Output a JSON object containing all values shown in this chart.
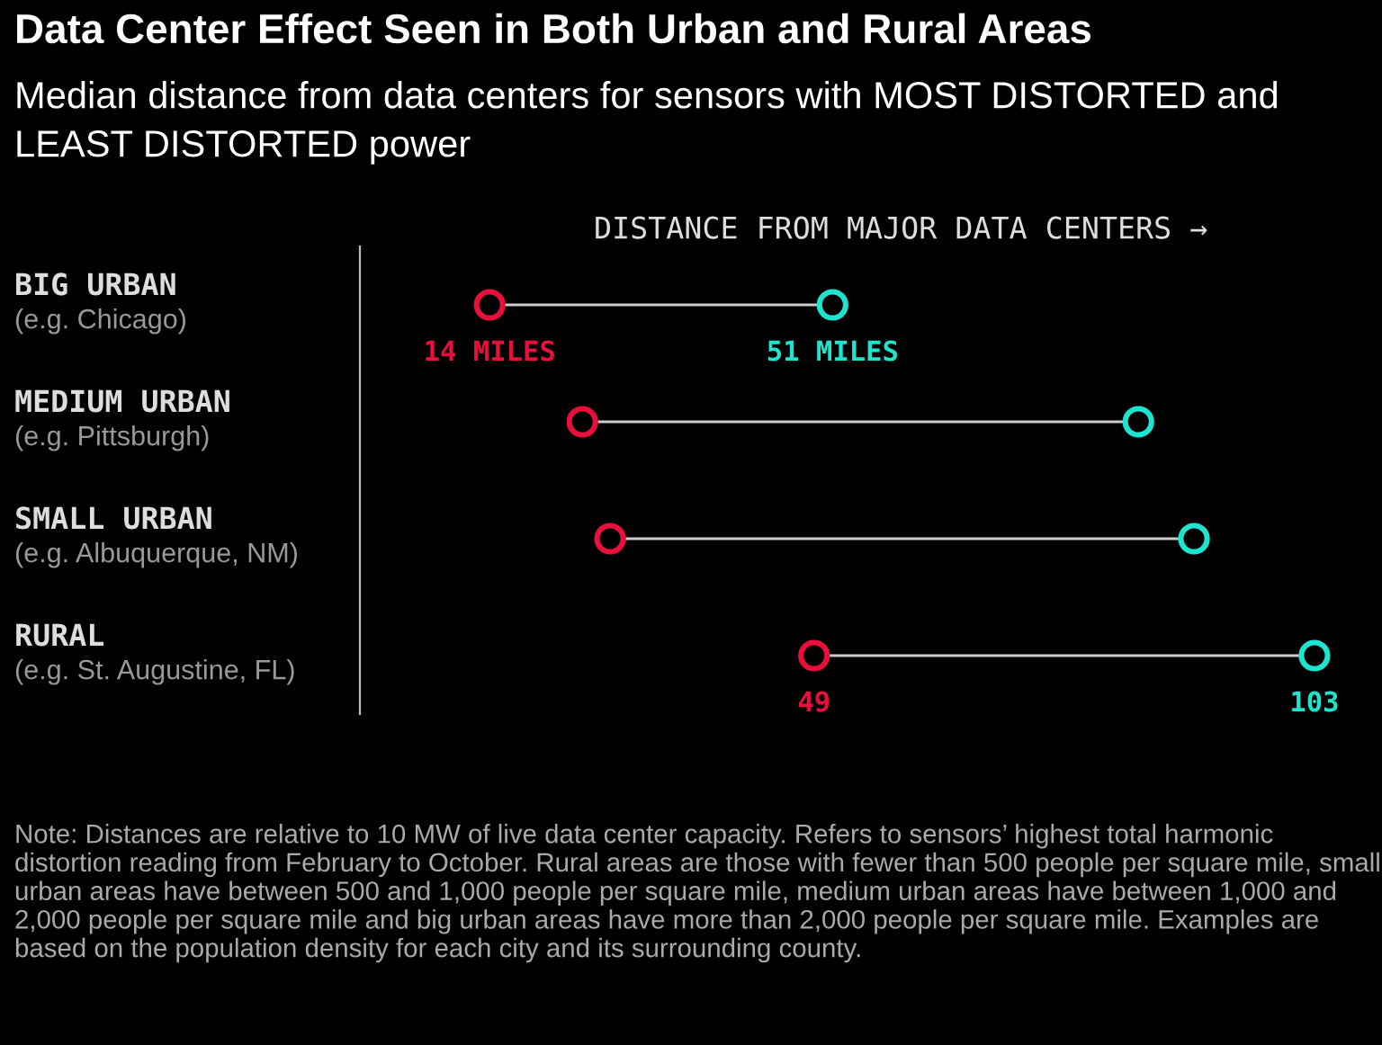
{
  "chart_data": {
    "type": "scatter",
    "orientation": "horizontal",
    "title": "Data Center Effect Seen in Both Urban and Rural Areas",
    "subtitle": "Median distance from data centers for sensors with MOST DISTORTED and LEAST DISTORTED power",
    "xlabel": "DISTANCE FROM MAJOR DATA CENTERS →",
    "categories": [
      "BIG URBAN\n(e.g. Chicago)",
      "MEDIUM URBAN\n(e.g. Pittsburgh)",
      "SMALL URBAN\n(e.g. Albuquerque, NM)",
      "RURAL\n(e.g. St. Augustine, FL)"
    ],
    "series": [
      {
        "color": "#e8103a",
        "values": [
          14,
          24,
          27,
          49
        ],
        "value_labels": [
          "14 MILES",
          null,
          null,
          "49"
        ]
      },
      {
        "color": "#1ee3cf",
        "values": [
          51,
          84,
          90,
          103
        ],
        "value_labels": [
          "51 MILES",
          null,
          null,
          "103"
        ]
      }
    ],
    "marker": "circle",
    "legend": false,
    "annotations": [
      "Note: Distances are relative to 10 MW of live data center capacity. Refers to sensors’ highest total harmonic distortion reading from February to October. Rural areas are those with fewer than 500 people per square mile, small urban areas have between 500 and 1,000 people per square mile, medium urban areas have between 1,000 and 2,000 people per square mile and big urban areas have more than 2,000 people per square mile. Examples are based on the population density for each city and its surrounding county."
    ]
  }
}
